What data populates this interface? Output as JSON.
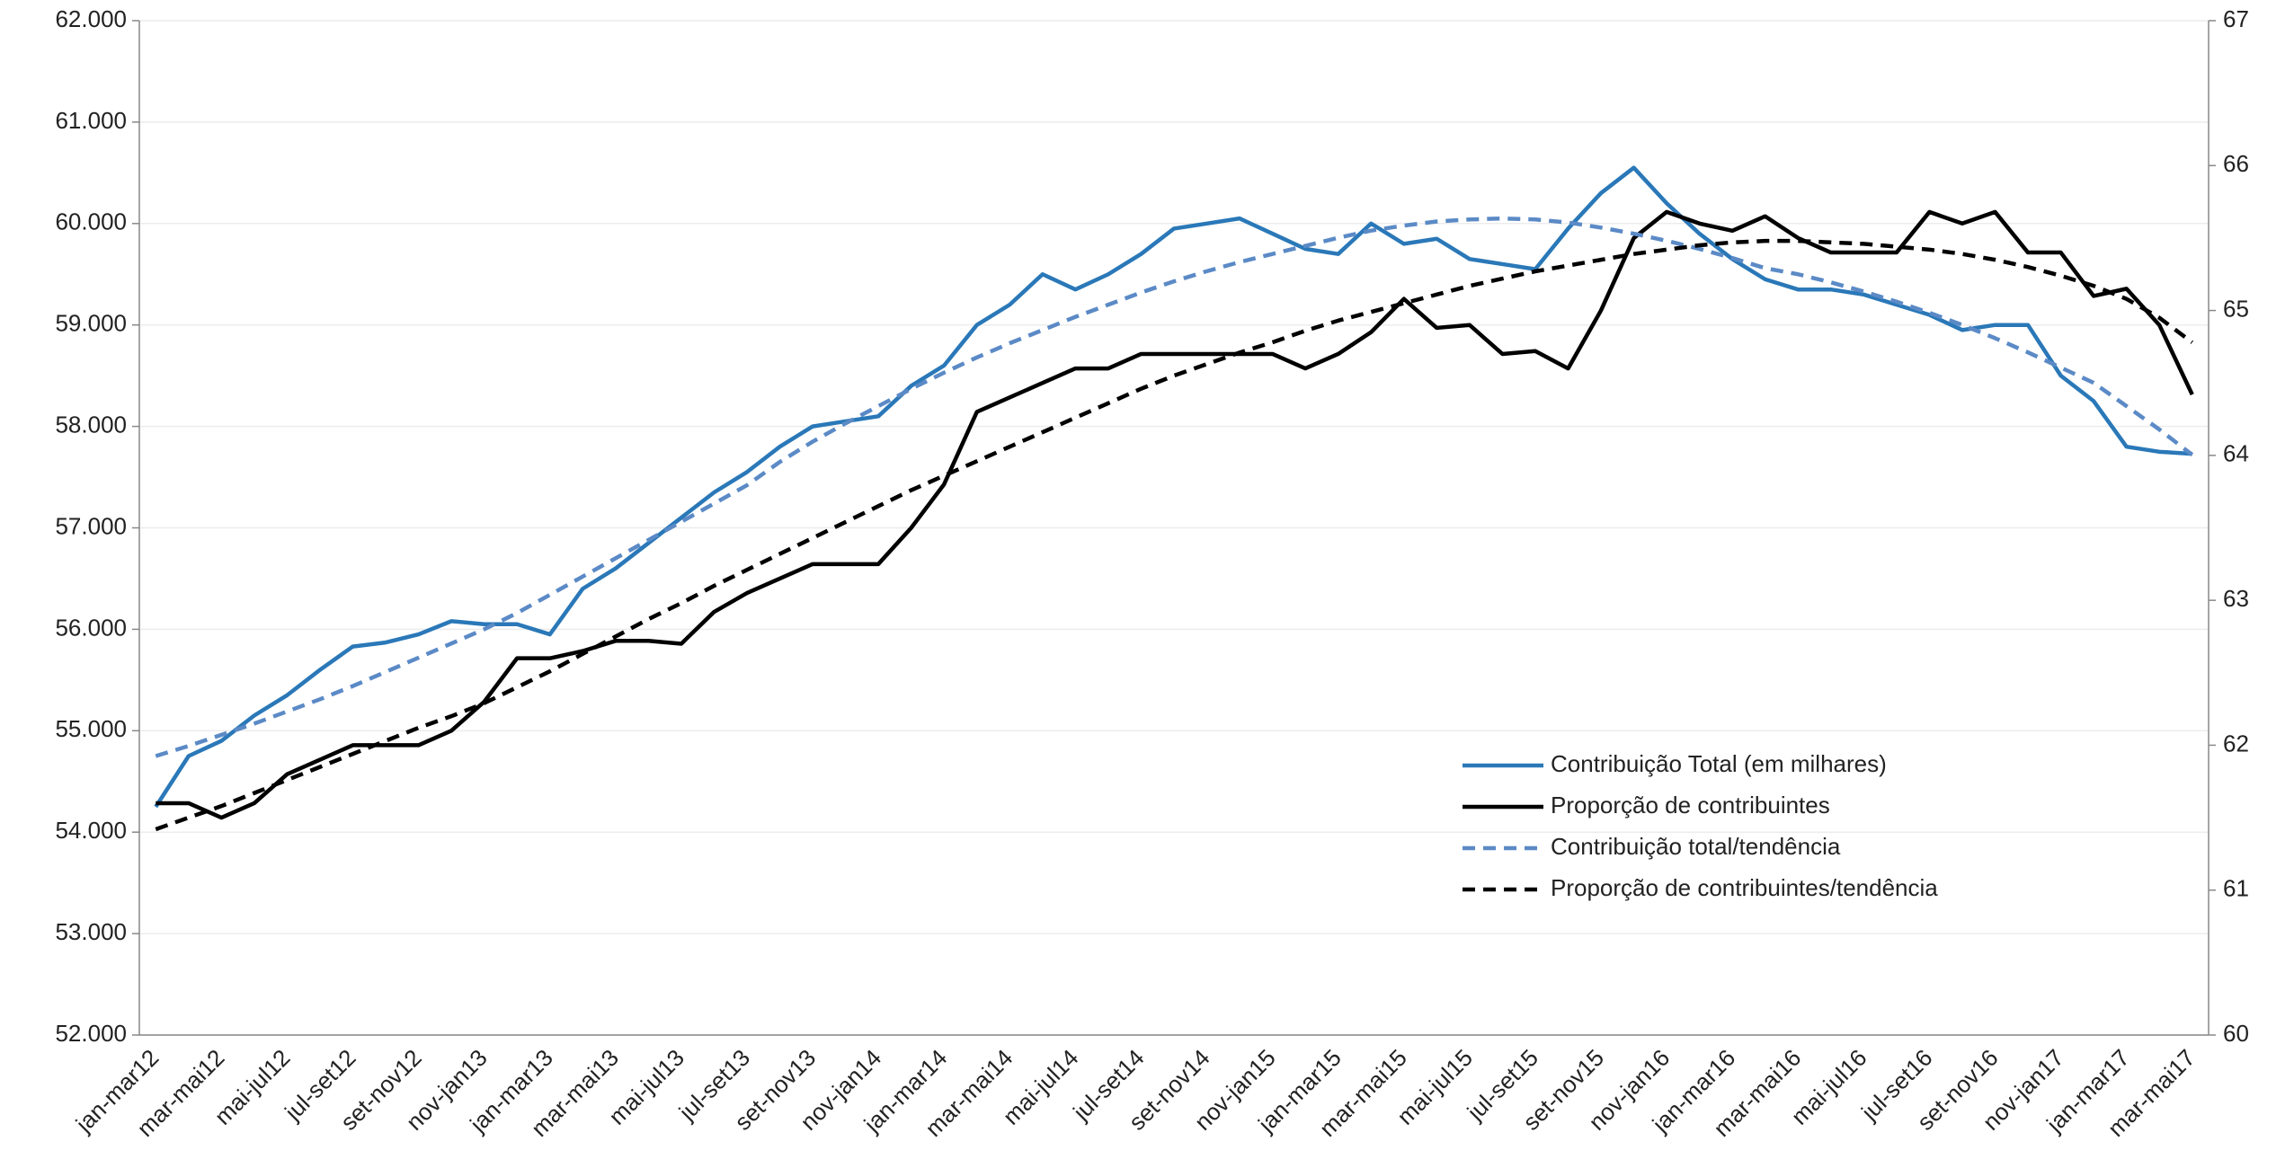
{
  "chart_data": {
    "type": "line",
    "categories": [
      "jan-mar12",
      null,
      "mar-mai12",
      null,
      "mai-jul12",
      null,
      "jul-set12",
      null,
      "set-nov12",
      null,
      "nov-jan13",
      null,
      "jan-mar13",
      null,
      "mar-mai13",
      null,
      "mai-jul13",
      null,
      "jul-set13",
      null,
      "set-nov13",
      null,
      "nov-jan14",
      null,
      "jan-mar14",
      null,
      "mar-mai14",
      null,
      "mai-jul14",
      null,
      "jul-set14",
      null,
      "set-nov14",
      null,
      "nov-jan15",
      null,
      "jan-mar15",
      null,
      "mar-mai15",
      null,
      "mai-jul15",
      null,
      "jul-set15",
      null,
      "set-nov15",
      null,
      "nov-jan16",
      null,
      "jan-mar16",
      null,
      "mar-mai16",
      null,
      "mai-jul16",
      null,
      "jul-set16",
      null,
      "set-nov16",
      null,
      "nov-jan17",
      null,
      "jan-mar17",
      null,
      "mar-mai17"
    ],
    "series": [
      {
        "name": "Contribuição Total (em milhares)",
        "color": "#2a78b8",
        "dashed": false,
        "axis": "y",
        "values": [
          54250,
          54750,
          54900,
          55150,
          55350,
          55600,
          55830,
          55870,
          55950,
          56080,
          56050,
          56050,
          55950,
          56400,
          56600,
          56850,
          57100,
          57350,
          57550,
          57800,
          58000,
          58050,
          58100,
          58400,
          58600,
          59000,
          59200,
          59500,
          59350,
          59500,
          59700,
          59950,
          60000,
          60050,
          59900,
          59750,
          59700,
          60000,
          59800,
          59850,
          59650,
          59600,
          59550,
          59950,
          60300,
          60550,
          60200,
          59900,
          59650,
          59450,
          59350,
          59350,
          59300,
          59200,
          59100,
          58950,
          59000,
          59000,
          58500,
          58250,
          57800,
          57750,
          57730
        ]
      },
      {
        "name": "Proporção de contribuintes",
        "color": "#000000",
        "dashed": false,
        "axis": "y2",
        "values": [
          61.6,
          61.6,
          61.5,
          61.6,
          61.8,
          61.9,
          62.0,
          62.0,
          62.0,
          62.1,
          62.3,
          62.6,
          62.6,
          62.65,
          62.72,
          62.72,
          62.7,
          62.92,
          63.05,
          63.15,
          63.25,
          63.25,
          63.25,
          63.5,
          63.8,
          64.3,
          64.4,
          64.5,
          64.6,
          64.6,
          64.7,
          64.7,
          64.7,
          64.7,
          64.7,
          64.6,
          64.7,
          64.85,
          65.08,
          64.88,
          64.9,
          64.7,
          64.72,
          64.6,
          65.0,
          65.5,
          65.68,
          65.6,
          65.55,
          65.65,
          65.5,
          65.4,
          65.4,
          65.4,
          65.68,
          65.6,
          65.68,
          65.4,
          65.4,
          65.1,
          65.15,
          64.9,
          64.42
        ]
      },
      {
        "name": "Contribuição total/tendência",
        "color": "#5b8ac6",
        "dashed": true,
        "axis": "y",
        "values": [
          54750,
          54850,
          54960,
          55070,
          55190,
          55310,
          55440,
          55580,
          55720,
          55860,
          56000,
          56160,
          56340,
          56520,
          56700,
          56880,
          57060,
          57240,
          57420,
          57650,
          57850,
          58030,
          58200,
          58370,
          58530,
          58680,
          58820,
          58950,
          59080,
          59200,
          59320,
          59430,
          59530,
          59620,
          59700,
          59780,
          59860,
          59930,
          59980,
          60020,
          60040,
          60050,
          60040,
          60010,
          59960,
          59900,
          59830,
          59750,
          59660,
          59560,
          59500,
          59420,
          59330,
          59230,
          59120,
          59000,
          58870,
          58730,
          58580,
          58430,
          58200,
          57970,
          57720
        ]
      },
      {
        "name": "Proporção de contribuintes/tendência",
        "color": "#000000",
        "dashed": true,
        "axis": "y2",
        "values": [
          61.42,
          61.5,
          61.58,
          61.67,
          61.76,
          61.85,
          61.94,
          62.03,
          62.12,
          62.2,
          62.29,
          62.4,
          62.51,
          62.63,
          62.75,
          62.87,
          62.98,
          63.1,
          63.21,
          63.32,
          63.43,
          63.54,
          63.65,
          63.76,
          63.86,
          63.96,
          64.06,
          64.16,
          64.26,
          64.36,
          64.46,
          64.55,
          64.63,
          64.71,
          64.78,
          64.86,
          64.93,
          64.99,
          65.05,
          65.11,
          65.17,
          65.22,
          65.27,
          65.31,
          65.35,
          65.39,
          65.42,
          65.45,
          65.47,
          65.48,
          65.48,
          65.47,
          65.46,
          65.44,
          65.42,
          65.39,
          65.35,
          65.3,
          65.24,
          65.17,
          65.08,
          64.95,
          64.78
        ]
      }
    ],
    "ylim": [
      52000,
      62000
    ],
    "yticks": [
      {
        "value": 52000,
        "label": "52.000"
      },
      {
        "value": 53000,
        "label": "53.000"
      },
      {
        "value": 54000,
        "label": "54.000"
      },
      {
        "value": 55000,
        "label": "55.000"
      },
      {
        "value": 56000,
        "label": "56.000"
      },
      {
        "value": 57000,
        "label": "57.000"
      },
      {
        "value": 58000,
        "label": "58.000"
      },
      {
        "value": 59000,
        "label": "59.000"
      },
      {
        "value": 60000,
        "label": "60.000"
      },
      {
        "value": 61000,
        "label": "61.000"
      },
      {
        "value": 62000,
        "label": "62.000"
      }
    ],
    "y2lim": [
      60,
      67
    ],
    "y2ticks": [
      60,
      61,
      62,
      63,
      64,
      65,
      66,
      67
    ],
    "grid": true,
    "legend": "lower right"
  }
}
